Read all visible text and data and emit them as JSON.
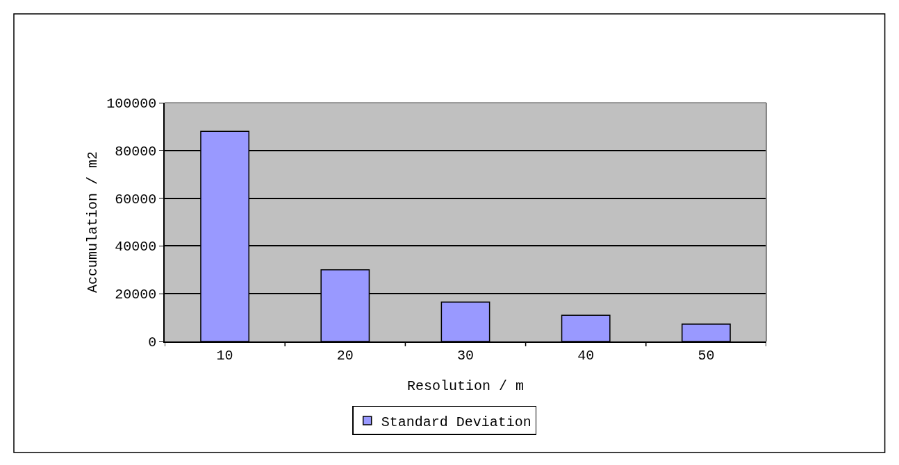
{
  "chart_data": {
    "type": "bar",
    "xlabel": "Resolution / m",
    "ylabel": "Accumulation / m2",
    "categories": [
      "10",
      "20",
      "30",
      "40",
      "50"
    ],
    "series": [
      {
        "name": "Standard Deviation",
        "color": "#9999ff",
        "values": [
          88000,
          30000,
          16500,
          11000,
          7300
        ]
      }
    ],
    "ylim": [
      0,
      100000
    ],
    "yticks": [
      0,
      20000,
      40000,
      60000,
      80000,
      100000
    ],
    "grid": "y",
    "legend": "bottom"
  }
}
